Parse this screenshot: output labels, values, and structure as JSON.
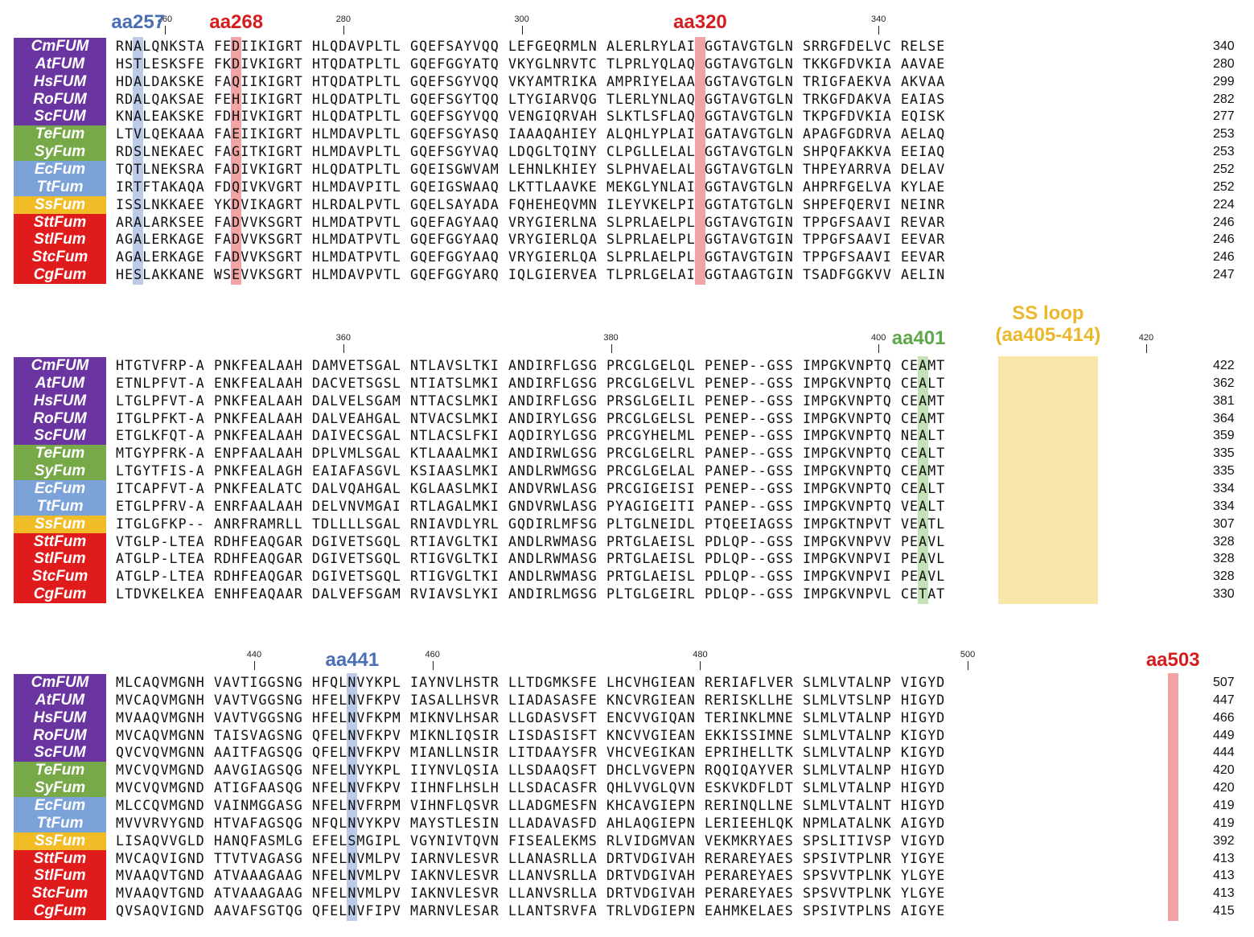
{
  "colors": {
    "eukaryote": "#6a35a0",
    "cyanobacteria": "#77a948",
    "proteobacteria": "#7ba3d9",
    "archaea": "#f2bc27",
    "gram_positive": "#e01b1b",
    "highlight_blue": "#bccbe8",
    "highlight_red": "#f2a4a4",
    "highlight_green": "#c6e2b8",
    "highlight_yellow": "#f8e7a9",
    "annot_blue": "#4a6fb5",
    "annot_red": "#d41e1e",
    "annot_green": "#5fa84a",
    "annot_yellow": "#ebb72b"
  },
  "species": [
    {
      "name": "CmFUM",
      "italic": "Cm",
      "rest": "FUM",
      "group": "eukaryote"
    },
    {
      "name": "AtFUM",
      "italic": "At",
      "rest": "FUM",
      "group": "eukaryote"
    },
    {
      "name": "HsFUM",
      "italic": "Hs",
      "rest": "FUM",
      "group": "eukaryote"
    },
    {
      "name": "RoFUM",
      "italic": "Ro",
      "rest": "FUM",
      "group": "eukaryote"
    },
    {
      "name": "ScFUM",
      "italic": "Sc",
      "rest": "FUM",
      "group": "eukaryote"
    },
    {
      "name": "TeFum",
      "italic": "Te",
      "rest": "Fum",
      "group": "cyanobacteria"
    },
    {
      "name": "SyFum",
      "italic": "Sy",
      "rest": "Fum",
      "group": "cyanobacteria"
    },
    {
      "name": "EcFum",
      "italic": "Ec",
      "rest": "Fum",
      "group": "proteobacteria"
    },
    {
      "name": "TtFum",
      "italic": "Tt",
      "rest": "Fum",
      "group": "proteobacteria"
    },
    {
      "name": "SsFum",
      "italic": "Ss",
      "rest": "Fum",
      "group": "archaea"
    },
    {
      "name": "SttFum",
      "italic": "Stt",
      "rest": "Fum",
      "group": "gram_positive"
    },
    {
      "name": "StlFum",
      "italic": "Stl",
      "rest": "Fum",
      "group": "gram_positive"
    },
    {
      "name": "StcFum",
      "italic": "Stc",
      "rest": "Fum",
      "group": "gram_positive"
    },
    {
      "name": "CgFum",
      "italic": "Cg",
      "rest": "Fum",
      "group": "gram_positive"
    }
  ],
  "blocks": [
    {
      "ticks": [
        {
          "label": "260",
          "col": 6
        },
        {
          "label": "280",
          "col": 26
        },
        {
          "label": "300",
          "col": 46
        },
        {
          "label": "340",
          "col": 86
        }
      ],
      "annotations": [
        {
          "text": "aa257",
          "col": 2.5,
          "color": "annot_blue"
        },
        {
          "text": "aa268",
          "col": 13.5,
          "color": "annot_red"
        },
        {
          "text": "aa320",
          "col": 65.5,
          "color": "annot_red"
        }
      ],
      "highlights": [
        {
          "start": 2,
          "end": 3,
          "color": "highlight_blue"
        },
        {
          "start": 13,
          "end": 14,
          "color": "highlight_red"
        },
        {
          "start": 65,
          "end": 66,
          "color": "highlight_red"
        }
      ],
      "rows": [
        {
          "seq": "RNALQNKSTA FEDIIKIGRT HLQDAVPLTL GQEFSAYVQQ LEFGEQRMLN ALERLRYLAI GGTAVGTGLN SRRGFDELVC RELSE",
          "end": "340"
        },
        {
          "seq": "HSTLESKSFE FKDIVKIGRT HTQDATPLTL GQEFGGYATQ VKYGLNRVTC TLPRLYQLAQ GGTAVGTGLN TKKGFDVKIA AAVAE",
          "end": "280"
        },
        {
          "seq": "HDALDAKSKE FAQIIKIGRT HTQDATPLTL GQEFSGYVQQ VKYAMTRIKA AMPRIYELAA GGTAVGTGLN TRIGFAEKVA AKVAA",
          "end": "299"
        },
        {
          "seq": "RDALQAKSAE FEHIIKIGRT HLQDATPLTL GQEFSGYTQQ LTYGIARVQG TLERLYNLAQ GGTAVGTGLN TRKGFDAKVA EAIAS",
          "end": "282"
        },
        {
          "seq": "KNALEAKSKE FDHIVKIGRT HLQDATPLTL GQEFSGYVQQ VENGIQRVAH SLKTLSFLAQ GGTAVGTGLN TKPGFDVKIA EQISK",
          "end": "277"
        },
        {
          "seq": "LTVLQEKAAA FAEIIKIGRT HLMDAVPLTL GQEFSGYASQ IAAAQAHIEY ALQHLYPLAI GATAVGTGLN APAGFGDRVA AELAQ",
          "end": "253"
        },
        {
          "seq": "RDSLNEKAEC FAGITKIGRT HLMDAVPLTL GQEFSGYVAQ LDQGLTQINY CLPGLLELAL GGTAVGTGLN SHPQFAKKVA EEIAQ",
          "end": "253"
        },
        {
          "seq": "TQTLNEKSRA FADIVKIGRT HLQDATPLTL GQEISGWVAM LEHNLKHIEY SLPHVAELAL GGTAVGTGLN THPEYARRVA DELAV",
          "end": "252"
        },
        {
          "seq": "IRTFTAKAQA FDQIVKVGRT HLMDAVPITL GQEIGSWAAQ LKTTLAAVKE MEKGLYNLAI GGTAVGTGLN AHPRFGELVA KYLAE",
          "end": "252"
        },
        {
          "seq": "ISSLNKKAEE YKDVIKAGRT HLRDALPVTL GQELSAYADA FQHEHEQVMN ILEYVKELPI GGTATGTGLN SHPEFQERVI NEINR",
          "end": "224"
        },
        {
          "seq": "ARALARKSEE FADVVKSGRT HLMDATPVTL GQEFAGYAAQ VRYGIERLNA SLPRLAELPL GGTAVGTGIN TPPGFSAAVI REVAR",
          "end": "246"
        },
        {
          "seq": "AGALERKAGE FADVVKSGRT HLMDATPVTL GQEFGGYAAQ VRYGIERLQA SLPRLAELPL GGTAVGTGIN TPPGFSAAVI EEVAR",
          "end": "246"
        },
        {
          "seq": "AGALERKAGE FADVVKSGRT HLMDATPVTL GQEFGGYAAQ VRYGIERLQA SLPRLAELPL GGTAVGTGIN TPPGFSAAVI EEVAR",
          "end": "246"
        },
        {
          "seq": "HESLAKKANE WSEVVKSGRT HLMDAVPVTL GQEFGGYARQ IQLGIERVEA TLPRLGELAI GGTAAGTGIN TSADFGGKVV AELIN",
          "end": "247"
        }
      ]
    },
    {
      "ticks": [
        {
          "label": "360",
          "col": 26
        },
        {
          "label": "380",
          "col": 56
        },
        {
          "label": "400",
          "col": 86
        },
        {
          "label": "420",
          "col": 116
        }
      ],
      "annotations": [
        {
          "text": "aa401",
          "col": 90,
          "color": "annot_green",
          "lines": [
            "aa401"
          ]
        },
        {
          "text": "SS loop\n(aa405-414)",
          "col": 104.5,
          "color": "annot_yellow",
          "lines": [
            "SS loop",
            "(aa405-414)"
          ]
        }
      ],
      "highlights": [
        {
          "start": 90,
          "end": 91,
          "color": "highlight_green"
        },
        {
          "start": 99,
          "end": 110,
          "color": "highlight_yellow"
        }
      ],
      "rows": [
        {
          "seq": "HTGTVFRP-A PNKFEALAAH DAMVETSGAL NTLAVSLTKI ANDIRFLGSG PRCGLGELQL PENEP--GSS IMPGKVNPTQ CEAMT",
          "end": "422"
        },
        {
          "seq": "ETNLPFVT-A ENKFEALAAH DACVETSGSL NTIATSLMKI ANDIRFLGSG PRCGLGELVL PENEP--GSS IMPGKVNPTQ CEALT",
          "end": "362"
        },
        {
          "seq": "LTGLPFVT-A PNKFEALAAH DALVELSGAM NTTACSLMKI ANDIRFLGSG PRSGLGELIL PENEP--GSS IMPGKVNPTQ CEAMT",
          "end": "381"
        },
        {
          "seq": "ITGLPFKT-A PNKFEALAAH DALVEAHGAL NTVACSLMKI ANDIRYLGSG PRCGLGELSL PENEP--GSS IMPGKVNPTQ CEAMT",
          "end": "364"
        },
        {
          "seq": "ETGLKFQT-A PNKFEALAAH DAIVECSGAL NTLACSLFKI AQDIRYLGSG PRCGYHELML PENEP--GSS IMPGKVNPTQ NEALT",
          "end": "359"
        },
        {
          "seq": "MTGYPFRK-A ENPFAALAAH DPLVMLSGAL KTLAAALMKI ANDIRWLGSG PRCGLGELRL PANEP--GSS IMPGKVNPTQ CEALT",
          "end": "335"
        },
        {
          "seq": "LTGYTFIS-A PNKFEALAGH EAIAFASGVL KSIAASLMKI ANDLRWMGSG PRCGLGELAL PANEP--GSS IMPGKVNPTQ CEAMT",
          "end": "335"
        },
        {
          "seq": "ITCAPFVT-A PNKFEALATC DALVQAHGAL KGLAASLMKI ANDVRWLASG PRCGIGEISI PENEP--GSS IMPGKVNPTQ CEALT",
          "end": "334"
        },
        {
          "seq": "ETGLPFRV-A ENRFAALAAH DELVNVMGAI RTLAGALMKI GNDVRWLASG PYAGIGEITI PANEP--GSS IMPGKVNPTQ VEALT",
          "end": "334"
        },
        {
          "seq": "ITGLGFKP-- ANRFRAMRLL TDLLLLSGAL RNIAVDLYRL GQDIRLMFSG PLTGLNEIDL PTQEEIAGSS IMPGKTNPVT VEATL",
          "end": "307"
        },
        {
          "seq": "VTGLP-LTEA RDHFEAQGAR DGIVETSGQL RTIAVGLTKI ANDLRWMASG PRTGLAEISL PDLQP--GSS IMPGKVNPVV PEAVL",
          "end": "328"
        },
        {
          "seq": "ATGLP-LTEA RDHFEAQGAR DGIVETSGQL RTIGVGLTKI ANDLRWMASG PRTGLAEISL PDLQP--GSS IMPGKVNPVI PEAVL",
          "end": "328"
        },
        {
          "seq": "ATGLP-LTEA RDHFEAQGAR DGIVETSGQL RTIGVGLTKI ANDLRWMASG PRTGLAEISL PDLQP--GSS IMPGKVNPVI PEAVL",
          "end": "328"
        },
        {
          "seq": "LTDVKELKEA ENHFEAQAAR DALVEFSGAM RVIAVSLYKI ANDIRLMGSG PLTGLGEIRL PDLQP--GSS IMPGKVNPVL CETAT",
          "end": "330"
        }
      ]
    },
    {
      "ticks": [
        {
          "label": "440",
          "col": 16
        },
        {
          "label": "460",
          "col": 36
        },
        {
          "label": "480",
          "col": 66
        },
        {
          "label": "500",
          "col": 96
        }
      ],
      "annotations": [
        {
          "text": "aa441",
          "col": 26.5,
          "color": "annot_blue"
        },
        {
          "text": "aa503",
          "col": 118.5,
          "color": "annot_red"
        }
      ],
      "highlights": [
        {
          "start": 26,
          "end": 27,
          "color": "highlight_blue"
        },
        {
          "start": 118,
          "end": 119,
          "color": "highlight_red"
        }
      ],
      "rows": [
        {
          "seq": "MLCAQVMGNH VAVTIGGSNG HFQLNVYKPL IAYNVLHSTR LLTDGMKSFE LHCVHGIEAN RERIAFLVER SLMLVTALNP VIGYD",
          "end": "507"
        },
        {
          "seq": "MVCAQVMGNH VAVTVGGSNG HFELNVFKPV IASALLHSVR LIADASASFE KNCVRGIEAN RERISKLLHE SLMLVTSLNP HIGYD",
          "end": "447"
        },
        {
          "seq": "MVAAQVMGNH VAVTVGGSNG HFELNVFKPM MIKNVLHSAR LLGDASVSFT ENCVVGIQAN TERINKLMNE SLMLVTALNP HIGYD",
          "end": "466"
        },
        {
          "seq": "MVCAQVMGNN TAISVAGSNG QFELNVFKPV MIKNLIQSIR LISDASISFT KNCVVGIEAN EKKISSIMNE SLMLVTALNP KIGYD",
          "end": "449"
        },
        {
          "seq": "QVCVQVMGNN AAITFAGSQG QFELNVFKPV MIANLLNSIR LITDAAYSFR VHCVEGIKAN EPRIHELLTK SLMLVTALNP KIGYD",
          "end": "444"
        },
        {
          "seq": "MVCVQVMGND AAVGIAGSQG NFELNVYKPL IIYNVLQSIA LLSDAAQSFT DHCLVGVEPN RQQIQAYVER SLMLVTALNP HIGYD",
          "end": "420"
        },
        {
          "seq": "MVCVQVMGND ATIGFAASQG NFELNVFKPV IIHNFLHSLH LLSDACASFR QHLVVGLQVN ESKVKDFLDT SLMLVTALNP HIGYD",
          "end": "420"
        },
        {
          "seq": "MLCCQVMGND VAINMGGASG NFELNVFRPM VIHNFLQSVR LLADGMESFN KHCAVGIEPN RERINQLLNE SLMLVTALNT HIGYD",
          "end": "419"
        },
        {
          "seq": "MVVVRVYGND HTVAFAGSQG NFQLNVYKPV MAYSTLESIN LLADAVASFD AHLAQGIEPN LERIEEHLQK NPMLATALNK AIGYD",
          "end": "419"
        },
        {
          "seq": "LISAQVVGLD HANQFASMLG EFELSMGIPL VGYNIVTQVN FISEALEKMS RLVIDGMVAN VEKMKRYAES SPSLITIVSP VIGYD",
          "end": "392"
        },
        {
          "seq": "MVCAQVIGND TTVTVAGASG NFELNVMLPV IARNVLESVR LLANASRLLA DRTVDGIVAH RERAREYAES SPSIVTPLNR YIGYE",
          "end": "413"
        },
        {
          "seq": "MVAAQVTGND ATVAAAGAAG NFELNVMLPV IAKNVLESVR LLANVSRLLA DRTVDGIVAH PERAREYAES SPSVVTPLNK YLGYE",
          "end": "413"
        },
        {
          "seq": "MVAAQVTGND ATVAAAGAAG NFELNVMLPV IAKNVLESVR LLANVSRLLA DRTVDGIVAH PERAREYAES SPSVVTPLNK YLGYE",
          "end": "413"
        },
        {
          "seq": "QVSAQVIGND AAVAFSGTQG QFELNVFIPV MARNVLESAR LLANTSRVFA TRLVDGIEPN EAHMKELAES SPSIVTPLNS AIGYE",
          "end": "415"
        }
      ]
    }
  ]
}
